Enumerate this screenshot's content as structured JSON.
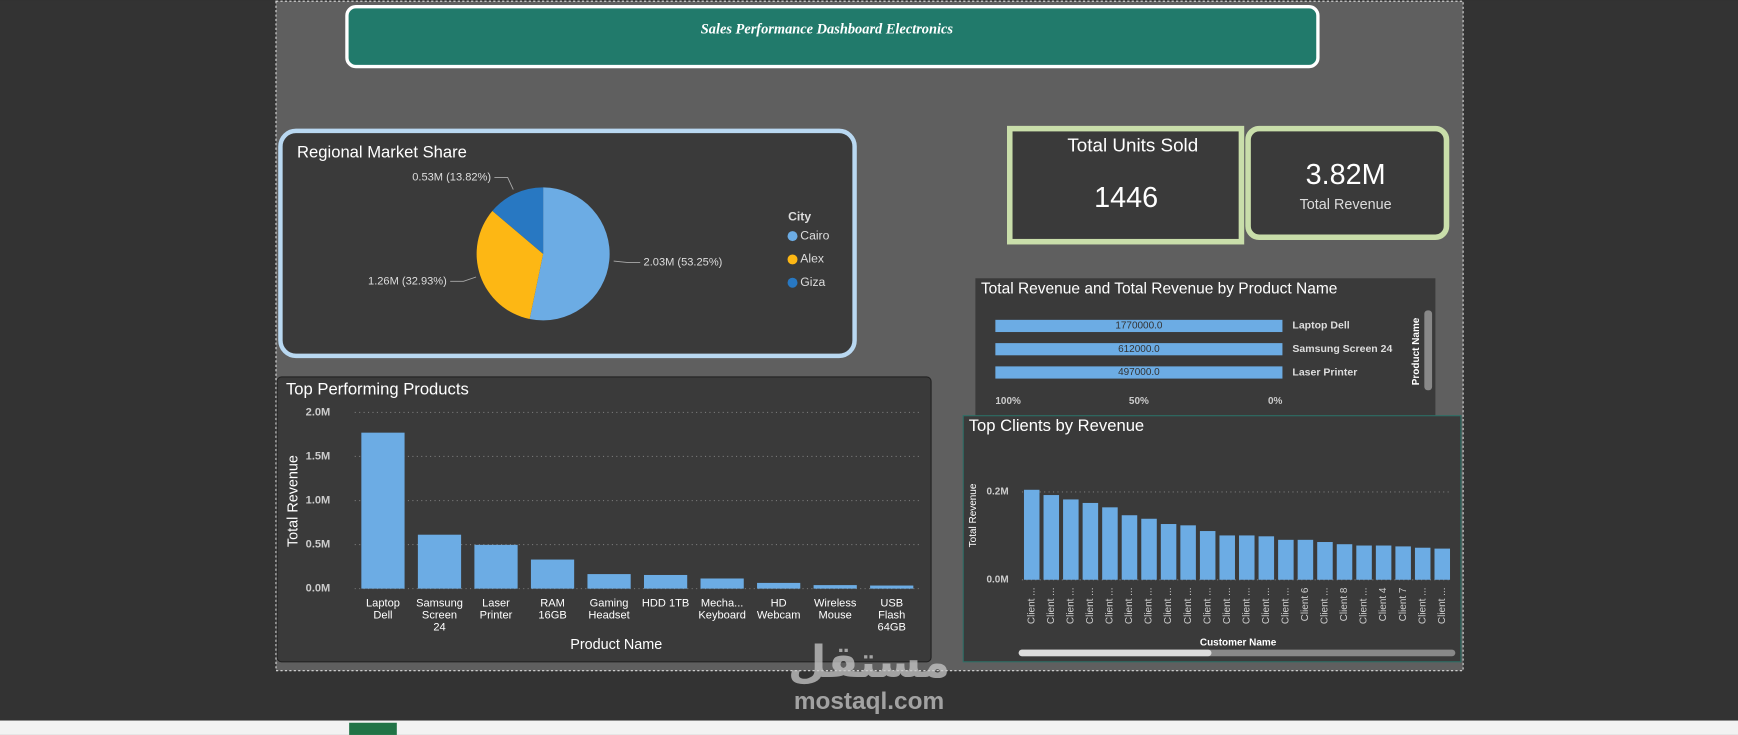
{
  "dashboard": {
    "title": "Sales Performance Dashboard Electronics",
    "cards": [
      {
        "label": "Total Units Sold",
        "value": 1446
      },
      {
        "value": "3.82M",
        "label": "Total Revenue"
      }
    ]
  },
  "watermark": {
    "logo": "مستقل",
    "site": "mostaql.com"
  },
  "chart_data": [
    {
      "type": "pie",
      "title": "Regional Market Share",
      "legend_title": "City",
      "categories": [
        "Cairo",
        "Alex",
        "Giza"
      ],
      "values": [
        53.25,
        32.93,
        13.82
      ],
      "value_labels": [
        "2.03M (53.25%)",
        "1.26M (32.93%)",
        "0.53M (13.82%)"
      ],
      "colors": [
        "#6cace4",
        "#fdb714",
        "#2878c2"
      ],
      "legend": "right"
    },
    {
      "type": "bar",
      "title": "Top Performing Products",
      "x_label": "Product Name",
      "y_label": "Total Revenue",
      "categories": [
        "Laptop Dell",
        "Samsung Screen 24",
        "Laser Printer",
        "RAM 16GB",
        "Gaming Headset",
        "HDD 1TB",
        "Mecha... Keyboard",
        "HD Webcam",
        "Wireless Mouse",
        "USB Flash 64GB"
      ],
      "values": [
        1770000,
        612000,
        497000,
        330000,
        165000,
        155000,
        115000,
        65000,
        40000,
        35000
      ],
      "color": "#6cace4",
      "ylim": [
        0,
        2000000
      ],
      "yticks": [
        {
          "value": 0,
          "label": "0.0M"
        },
        {
          "value": 500000,
          "label": "0.5M"
        },
        {
          "value": 1000000,
          "label": "1.0M"
        },
        {
          "value": 1500000,
          "label": "1.5M"
        },
        {
          "value": 2000000,
          "label": "2.0M"
        }
      ],
      "grid": true
    },
    {
      "type": "barh",
      "title": "Total Revenue and Total Revenue by Product Name",
      "y_label": "Product Name",
      "categories": [
        "Laptop Dell",
        "Samsung Screen 24",
        "Laser Printer"
      ],
      "values": [
        1770000,
        612000,
        497000
      ],
      "value_labels": [
        "1770000.0",
        "612000.0",
        "497000.0"
      ],
      "color": "#6cace4",
      "xlim": [
        100,
        0
      ],
      "xticks": [
        {
          "value": 100,
          "label": "100%"
        },
        {
          "value": 50,
          "label": "50%"
        },
        {
          "value": 0,
          "label": "0%"
        }
      ]
    },
    {
      "type": "bar",
      "title": "Top Clients by Revenue",
      "x_label": "Customer Name",
      "y_label": "Total Revenue",
      "categories": [
        "Client ...",
        "Client ...",
        "Client ...",
        "Client ...",
        "Client ...",
        "Client ...",
        "Client ...",
        "Client ...",
        "Client ...",
        "Client ...",
        "Client ...",
        "Client ...",
        "Client ...",
        "Client ...",
        "Client 6",
        "Client ...",
        "Client 8",
        "Client ...",
        "Client 4",
        "Client 7",
        "Client ...",
        "Client ..."
      ],
      "values": [
        205000,
        193000,
        183000,
        175000,
        165000,
        147000,
        139000,
        127000,
        124000,
        111000,
        101000,
        101000,
        99000,
        91000,
        91000,
        86000,
        81000,
        78000,
        78000,
        76000,
        73000,
        71000
      ],
      "color": "#6cace4",
      "ylim": [
        0,
        250000
      ],
      "yticks": [
        {
          "value": 0,
          "label": "0.0M"
        },
        {
          "value": 200000,
          "label": "0.2M"
        }
      ],
      "grid": true
    }
  ]
}
